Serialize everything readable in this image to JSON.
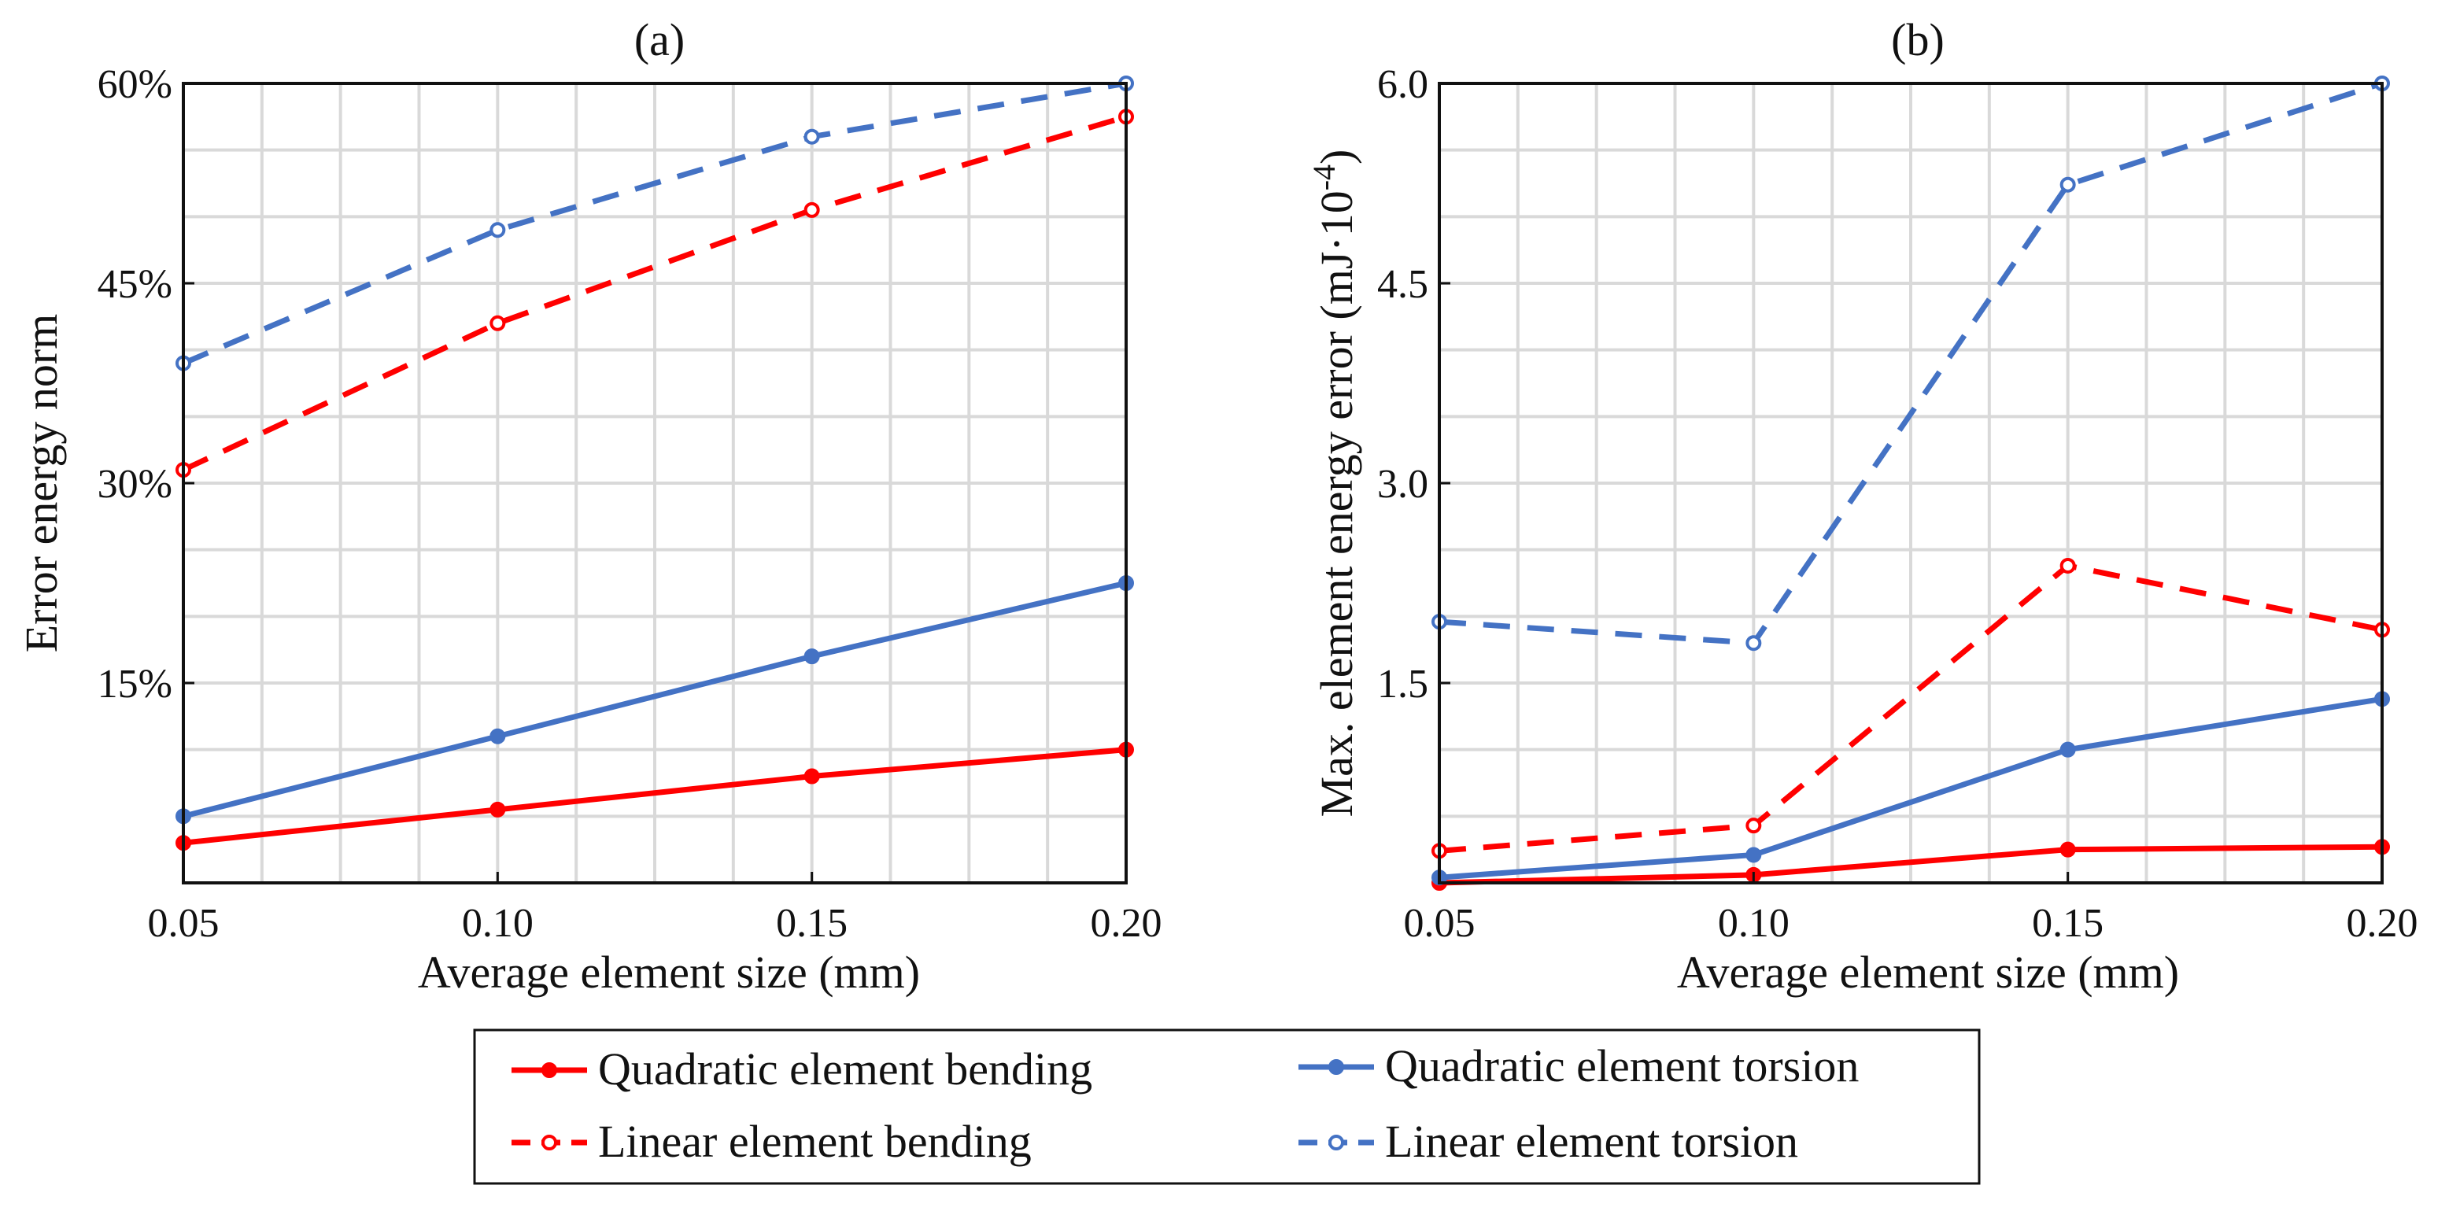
{
  "chart_data": [
    {
      "type": "line",
      "title": "(a)",
      "xlabel": "Average element size (mm)",
      "ylabel": "Error energy norm",
      "x": [
        0.05,
        0.1,
        0.15,
        0.2
      ],
      "xticks": [
        "0.05",
        "0.10",
        "0.15",
        "0.20"
      ],
      "xlim": [
        0.05,
        0.2
      ],
      "ylim": [
        0,
        60
      ],
      "yticks": [
        15,
        30,
        45,
        60
      ],
      "ytick_labels": [
        "15%",
        "30%",
        "45%",
        "60%"
      ],
      "grid": true,
      "series": [
        {
          "name": "Quadratic element bending",
          "values": [
            3.0,
            5.5,
            8.0,
            10.0
          ]
        },
        {
          "name": "Quadratic element torsion",
          "values": [
            5.0,
            11.0,
            17.0,
            22.5
          ]
        },
        {
          "name": "Linear element bending",
          "values": [
            31.0,
            42.0,
            50.5,
            57.5
          ]
        },
        {
          "name": "Linear element torsion",
          "values": [
            39.0,
            49.0,
            56.0,
            60.0
          ]
        }
      ]
    },
    {
      "type": "line",
      "title": "(b)",
      "xlabel": "Average element size (mm)",
      "ylabel_main": "Max. element energy error (mJ·10",
      "ylabel_exp": "-4",
      "ylabel_close": ")",
      "x": [
        0.05,
        0.1,
        0.15,
        0.2
      ],
      "xticks": [
        "0.05",
        "0.10",
        "0.15",
        "0.20"
      ],
      "xlim": [
        0.05,
        0.2
      ],
      "ylim": [
        0,
        6.0
      ],
      "yticks": [
        1.5,
        3.0,
        4.5,
        6.0
      ],
      "ytick_labels": [
        "1.5",
        "3.0",
        "4.5",
        "6.0"
      ],
      "grid": true,
      "series": [
        {
          "name": "Quadratic element bending",
          "values": [
            0.0,
            0.06,
            0.25,
            0.27
          ]
        },
        {
          "name": "Quadratic element torsion",
          "values": [
            0.04,
            0.21,
            1.0,
            1.38
          ]
        },
        {
          "name": "Linear element bending",
          "values": [
            0.24,
            0.43,
            2.38,
            1.9
          ]
        },
        {
          "name": "Linear element torsion",
          "values": [
            1.96,
            1.8,
            5.24,
            6.0
          ]
        }
      ]
    }
  ],
  "series_style": [
    {
      "name": "Quadratic element bending",
      "color": "#ff0000",
      "dashed": false,
      "marker": "filled"
    },
    {
      "name": "Quadratic element torsion",
      "color": "#4472c4",
      "dashed": false,
      "marker": "filled"
    },
    {
      "name": "Linear element bending",
      "color": "#ff0000",
      "dashed": true,
      "marker": "open"
    },
    {
      "name": "Linear element torsion",
      "color": "#4472c4",
      "dashed": true,
      "marker": "open"
    }
  ],
  "legend": {
    "placement": "bottom-center",
    "entries": [
      "Quadratic element bending",
      "Quadratic element torsion",
      "Linear element bending",
      "Linear element torsion"
    ]
  }
}
